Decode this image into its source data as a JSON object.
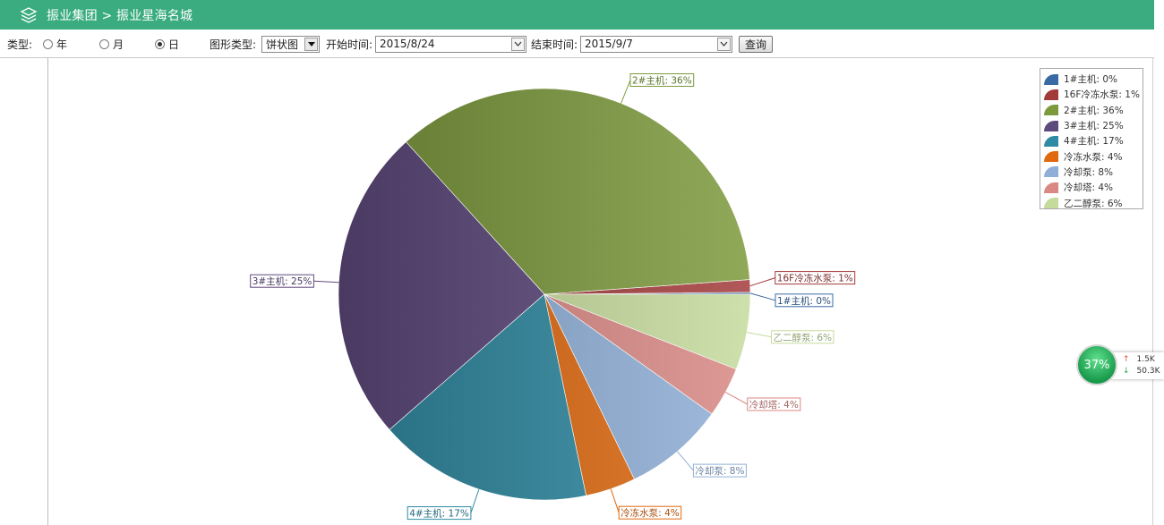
{
  "header": {
    "breadcrumb": "振业集团 > 振业星海名城",
    "icon": "layers-icon"
  },
  "filters": {
    "type_label": "类型:",
    "period_options": [
      {
        "label": "年",
        "checked": false
      },
      {
        "label": "月",
        "checked": false
      },
      {
        "label": "日",
        "checked": true
      }
    ],
    "chart_type_label": "图形类型:",
    "chart_type_value": "饼状图",
    "start_label": "开始时间:",
    "start_value": "2015/8/24",
    "end_label": "结束时间:",
    "end_value": "2015/9/7",
    "query_button": "查询"
  },
  "chart_data": {
    "type": "pie",
    "slices": [
      {
        "name": "1#主机",
        "label": "1#主机: 0%",
        "value": 0,
        "color": "#3a6aa3"
      },
      {
        "name": "16F冷冻水泵",
        "label": "16F冷冻水泵: 1%",
        "value": 1,
        "color": "#a33a3a"
      },
      {
        "name": "2#主机",
        "label": "2#主机: 36%",
        "value": 36,
        "color": "#7c9a3c"
      },
      {
        "name": "3#主机",
        "label": "3#主机: 25%",
        "value": 25,
        "color": "#5f4a7e"
      },
      {
        "name": "4#主机",
        "label": "4#主机: 17%",
        "value": 17,
        "color": "#2f8ba3"
      },
      {
        "name": "冷冻水泵",
        "label": "冷冻水泵: 4%",
        "value": 4,
        "color": "#e0690f"
      },
      {
        "name": "冷却泵",
        "label": "冷却泵: 8%",
        "value": 8,
        "color": "#8fafd8"
      },
      {
        "name": "冷却塔",
        "label": "冷却塔: 4%",
        "value": 4,
        "color": "#d98884"
      },
      {
        "name": "乙二醇泵",
        "label": "乙二醇泵: 6%",
        "value": 6,
        "color": "#c5db9c"
      }
    ],
    "legend_position": "top-right"
  },
  "widget": {
    "percent": "37%",
    "upload": "1.5K",
    "download": "50.3K"
  }
}
